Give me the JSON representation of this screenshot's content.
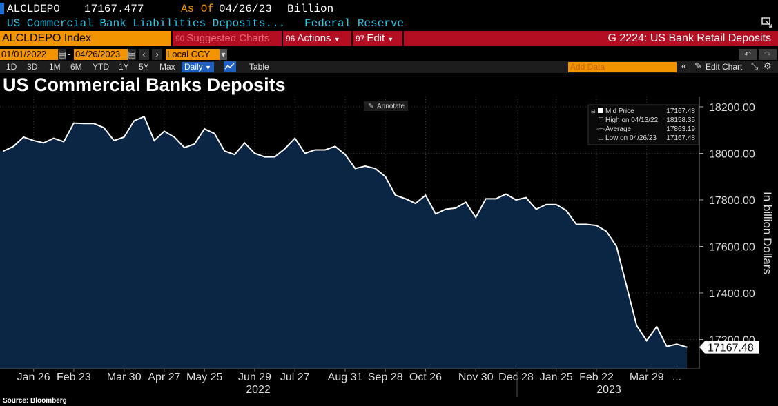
{
  "header": {
    "ticker": "ALCLDEPO",
    "last_value": "17167.477",
    "as_of_label": "As Of",
    "as_of_date": "04/26/23",
    "unit": "Billion",
    "description": "US Commercial Bank Liabilities Deposits...",
    "source_name": "Federal Reserve"
  },
  "toolbar": {
    "security": "ALCLDEPO Index",
    "suggested_num": "90",
    "suggested": "Suggested Charts",
    "actions_num": "96",
    "actions": "Actions",
    "edit_num": "97",
    "edit": "Edit",
    "right_title": "G 2224: US Bank Retail Deposits"
  },
  "range": {
    "start": "01/01/2022",
    "dash": "-",
    "end": "04/26/2023",
    "currency": "Local CCY"
  },
  "timeframes": [
    "1D",
    "3D",
    "1M",
    "6M",
    "YTD",
    "1Y",
    "5Y",
    "Max"
  ],
  "frequency": "Daily",
  "table_label": "Table",
  "add_data_placeholder": "Add Data",
  "edit_chart": "Edit Chart",
  "annotate": "Annotate",
  "title": "US Commercial Banks Deposits",
  "source_note": "Source: Bloomberg",
  "legend": {
    "mid_label": "Mid Price",
    "mid_value": "17167.48",
    "high_label": "High on 04/13/22",
    "high_value": "18158.35",
    "avg_label": "Average",
    "avg_value": "17863.19",
    "low_label": "Low on 04/26/23",
    "low_value": "17167.48"
  },
  "colors": {
    "area_fill": "#0b2545",
    "line": "#ffffff",
    "accent_orange": "#f29300",
    "accent_red": "#b30e22",
    "accent_cyan": "#2ec7e6"
  },
  "chart_data": {
    "type": "area",
    "ylabel": "In billion Dollars",
    "ylim": [
      17100,
      18200
    ],
    "yticks": [
      "18200.00",
      "18000.00",
      "17800.00",
      "17600.00",
      "17400.00",
      "17200.00"
    ],
    "ytick_values": [
      18200,
      18000,
      17800,
      17600,
      17400,
      17200
    ],
    "last_value_label": "17167.48",
    "xtick_labels": [
      "Jan 26",
      "Feb 23",
      "Mar 30",
      "Apr 27",
      "May 25",
      "Jun 29",
      "Jul 27",
      "Aug 31",
      "Sep 28",
      "Oct 26",
      "Nov 30",
      "Dec 28",
      "Jan 25",
      "Feb 22",
      "Mar 29",
      "..."
    ],
    "year_labels": [
      "2022",
      "2023"
    ],
    "x": [
      "2022-01-05",
      "2022-01-12",
      "2022-01-19",
      "2022-01-26",
      "2022-02-02",
      "2022-02-09",
      "2022-02-16",
      "2022-02-23",
      "2022-03-02",
      "2022-03-09",
      "2022-03-16",
      "2022-03-23",
      "2022-03-30",
      "2022-04-06",
      "2022-04-13",
      "2022-04-20",
      "2022-04-27",
      "2022-05-04",
      "2022-05-11",
      "2022-05-18",
      "2022-05-25",
      "2022-06-01",
      "2022-06-08",
      "2022-06-15",
      "2022-06-22",
      "2022-06-29",
      "2022-07-06",
      "2022-07-13",
      "2022-07-20",
      "2022-07-27",
      "2022-08-03",
      "2022-08-10",
      "2022-08-17",
      "2022-08-24",
      "2022-08-31",
      "2022-09-07",
      "2022-09-14",
      "2022-09-21",
      "2022-09-28",
      "2022-10-05",
      "2022-10-12",
      "2022-10-19",
      "2022-10-26",
      "2022-11-02",
      "2022-11-09",
      "2022-11-16",
      "2022-11-23",
      "2022-11-30",
      "2022-12-07",
      "2022-12-14",
      "2022-12-21",
      "2022-12-28",
      "2023-01-04",
      "2023-01-11",
      "2023-01-18",
      "2023-01-25",
      "2023-02-01",
      "2023-02-08",
      "2023-02-15",
      "2023-02-22",
      "2023-03-01",
      "2023-03-08",
      "2023-03-15",
      "2023-03-22",
      "2023-03-29",
      "2023-04-05",
      "2023-04-12",
      "2023-04-19",
      "2023-04-26"
    ],
    "series": [
      {
        "values": [
          18010,
          18030,
          18070,
          18055,
          18045,
          18065,
          18050,
          18130,
          18128,
          18128,
          18110,
          18055,
          18070,
          18140,
          18158,
          18055,
          18095,
          18070,
          18025,
          18040,
          18105,
          18085,
          18010,
          17995,
          18045,
          18000,
          17985,
          17985,
          18020,
          18065,
          18000,
          18015,
          18015,
          18030,
          17995,
          17935,
          17945,
          17935,
          17900,
          17820,
          17805,
          17785,
          17820,
          17740,
          17760,
          17765,
          17790,
          17725,
          17805,
          17805,
          17825,
          17800,
          17810,
          17760,
          17780,
          17780,
          17755,
          17695,
          17695,
          17690,
          17665,
          17600,
          17430,
          17260,
          17195,
          17255,
          17170,
          17180,
          17167
        ]
      }
    ]
  }
}
